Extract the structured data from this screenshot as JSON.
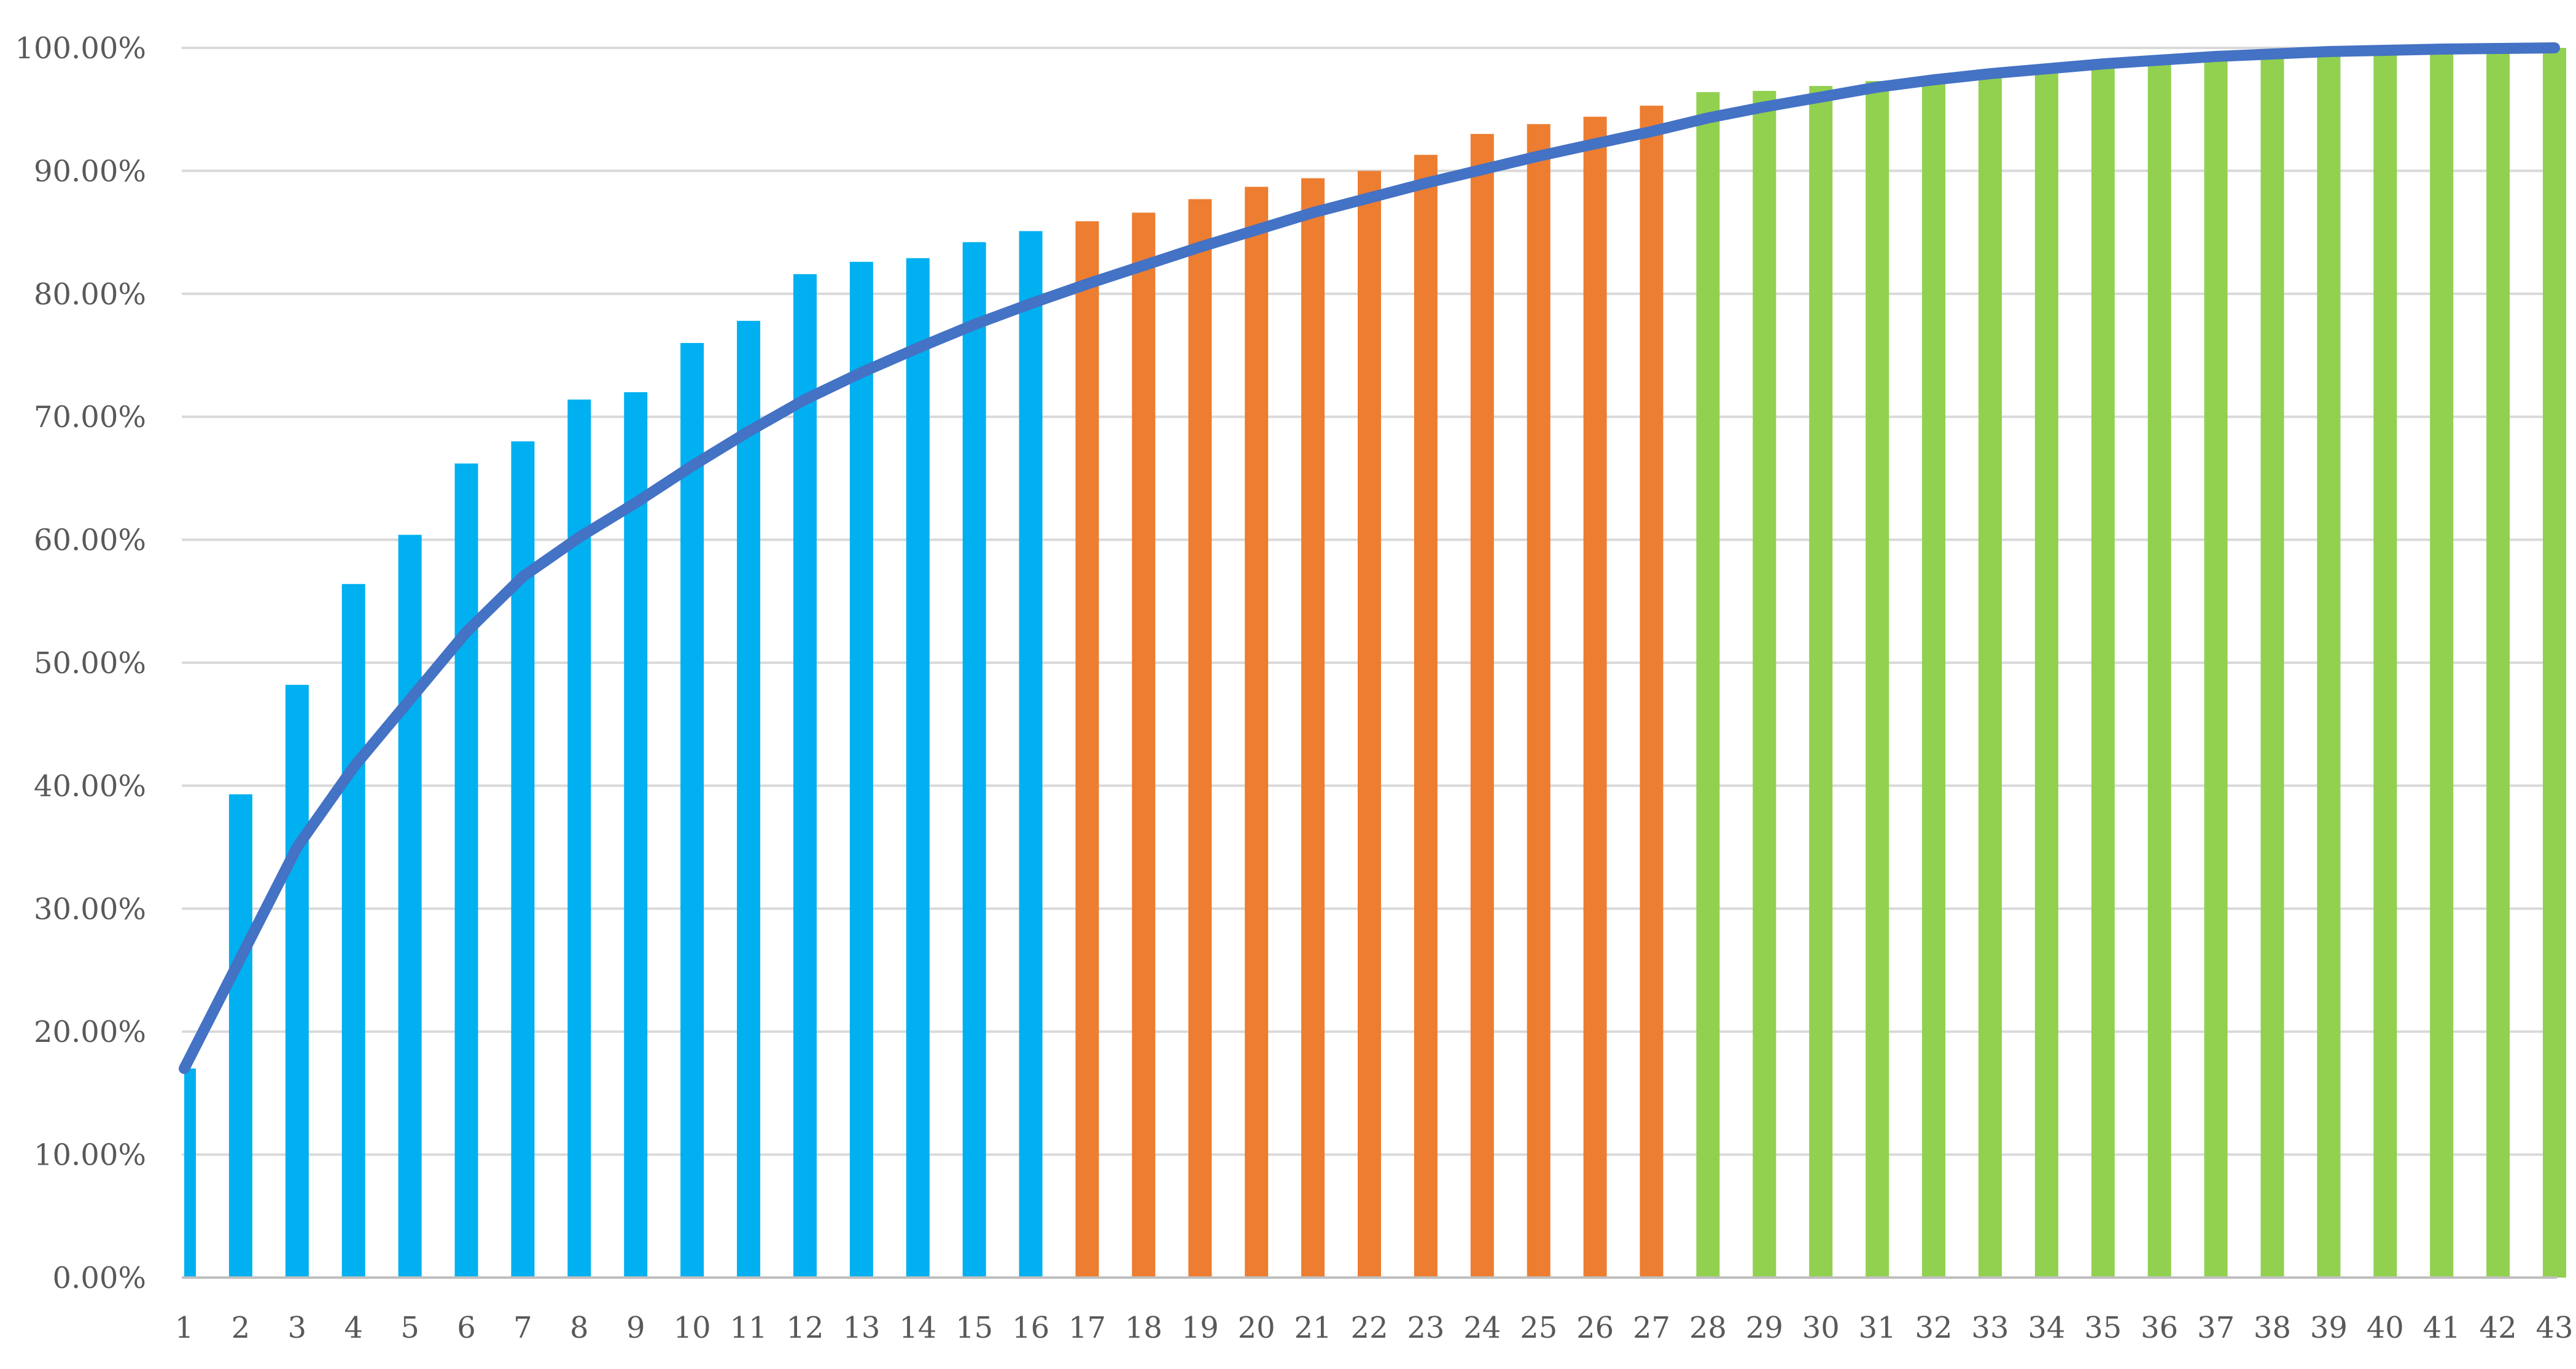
{
  "chart_data": {
    "type": "bar",
    "title": "",
    "xlabel": "",
    "ylabel": "",
    "ylim": [
      0,
      100
    ],
    "y_tick_values": [
      0,
      10,
      20,
      30,
      40,
      50,
      60,
      70,
      80,
      90,
      100
    ],
    "y_tick_labels": [
      "0.00%",
      "10.00%",
      "20.00%",
      "30.00%",
      "40.00%",
      "50.00%",
      "60.00%",
      "70.00%",
      "80.00%",
      "90.00%",
      "100.00%"
    ],
    "grid": true,
    "legend": "none",
    "categories": [
      "1",
      "2",
      "3",
      "4",
      "5",
      "6",
      "7",
      "8",
      "9",
      "10",
      "11",
      "12",
      "13",
      "14",
      "15",
      "16",
      "17",
      "18",
      "19",
      "20",
      "21",
      "22",
      "23",
      "24",
      "25",
      "26",
      "27",
      "28",
      "29",
      "30",
      "31",
      "32",
      "33",
      "34",
      "35",
      "36",
      "37",
      "38",
      "39",
      "40",
      "41",
      "42",
      "43"
    ],
    "bars": {
      "values": [
        17.0,
        39.3,
        48.2,
        56.4,
        60.4,
        66.2,
        68.0,
        71.4,
        72.0,
        76.0,
        77.8,
        81.6,
        82.6,
        82.9,
        84.2,
        85.1,
        85.9,
        86.6,
        87.7,
        88.7,
        89.4,
        90.0,
        91.3,
        93.0,
        93.8,
        94.4,
        95.3,
        96.4,
        96.5,
        96.9,
        97.3,
        97.6,
        97.9,
        98.3,
        98.6,
        99.0,
        99.2,
        99.4,
        99.6,
        99.7,
        99.8,
        99.9,
        100.0
      ],
      "color_groups": [
        {
          "from": 1,
          "to": 16,
          "color": "#00b0f0"
        },
        {
          "from": 17,
          "to": 27,
          "color": "#ed7d31"
        },
        {
          "from": 28,
          "to": 43,
          "color": "#92d050"
        }
      ]
    },
    "line": {
      "values": [
        17.0,
        26.0,
        35.0,
        41.5,
        47.0,
        52.5,
        57.0,
        60.2,
        63.0,
        66.0,
        68.8,
        71.4,
        73.6,
        75.6,
        77.5,
        79.2,
        80.8,
        82.3,
        83.8,
        85.2,
        86.6,
        87.8,
        89.0,
        90.1,
        91.2,
        92.2,
        93.2,
        94.3,
        95.2,
        96.0,
        96.8,
        97.4,
        97.9,
        98.3,
        98.7,
        99.0,
        99.3,
        99.5,
        99.7,
        99.8,
        99.9,
        99.95,
        100.0
      ],
      "color": "#4472c4"
    }
  }
}
